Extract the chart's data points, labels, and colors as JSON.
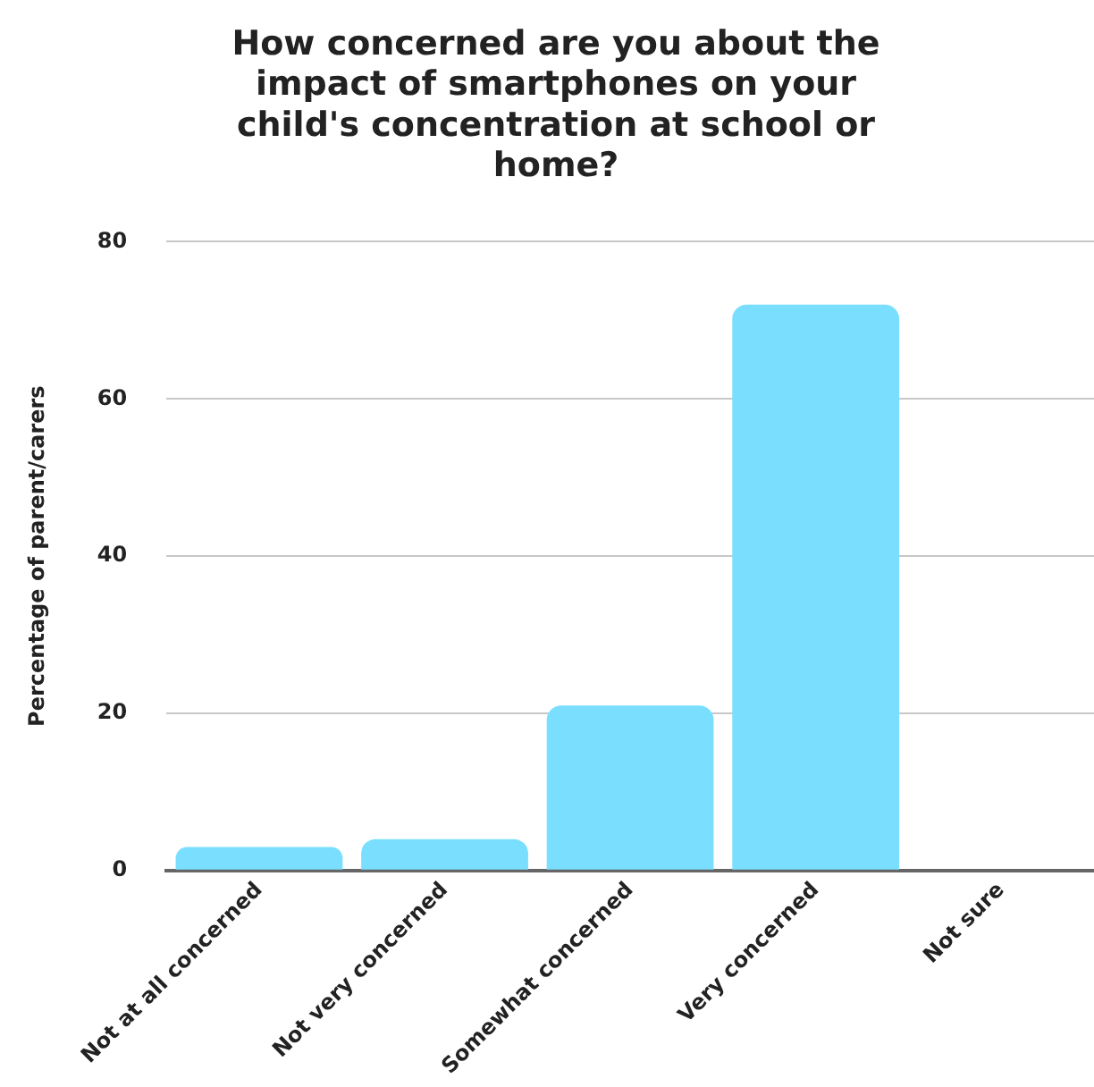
{
  "chart_data": {
    "type": "bar",
    "title": "How concerned are you about the impact of smartphones on your child's concentration at school or home?",
    "ylabel": "Percentage of parent/carers",
    "categories": [
      "Not at all concerned",
      "Not very concerned",
      "Somewhat concerned",
      "Very concerned",
      "Not sure"
    ],
    "values": [
      3,
      4,
      21,
      72,
      0
    ],
    "color": "#7adfff",
    "ylim": [
      0,
      80
    ],
    "yticks": [
      0,
      20,
      40,
      60,
      80
    ],
    "grid": "y"
  }
}
